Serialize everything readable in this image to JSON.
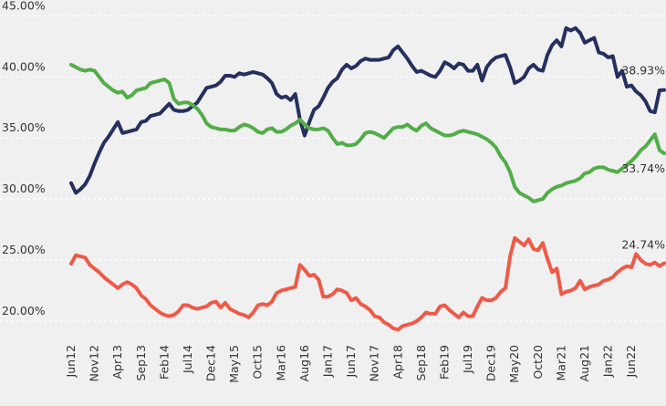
{
  "chart_data": {
    "type": "line",
    "categories": [
      "Jun12",
      null,
      null,
      null,
      null,
      "Nov12",
      null,
      null,
      null,
      null,
      "Apr13",
      null,
      null,
      null,
      null,
      "Sep13",
      null,
      null,
      null,
      null,
      "Feb14",
      null,
      null,
      null,
      null,
      "Jul14",
      null,
      null,
      null,
      null,
      "Dec14",
      null,
      null,
      null,
      null,
      "May15",
      null,
      null,
      null,
      null,
      "Oct15",
      null,
      null,
      null,
      null,
      "Mar16",
      null,
      null,
      null,
      null,
      "Aug16",
      null,
      null,
      null,
      null,
      "Jan17",
      null,
      null,
      null,
      null,
      "Jun17",
      null,
      null,
      null,
      null,
      "Nov17",
      null,
      null,
      null,
      null,
      "Apr18",
      null,
      null,
      null,
      null,
      "Sep18",
      null,
      null,
      null,
      null,
      "Feb19",
      null,
      null,
      null,
      null,
      "Jul19",
      null,
      null,
      null,
      null,
      "Dec19",
      null,
      null,
      null,
      null,
      "May20",
      null,
      null,
      null,
      null,
      "Oct20",
      null,
      null,
      null,
      null,
      "Mar21",
      null,
      null,
      null,
      null,
      "Aug21",
      null,
      null,
      null,
      null,
      "Jan22",
      null,
      null,
      null,
      null,
      "Jun22",
      null,
      null,
      null,
      null,
      null,
      null,
      null
    ],
    "series": [
      {
        "color": "#25305f",
        "values": [
          31.3,
          30.5,
          30.8,
          31.2,
          31.9,
          32.9,
          33.8,
          34.6,
          35.1,
          35.7,
          36.3,
          35.4,
          35.5,
          35.6,
          35.7,
          36.3,
          36.4,
          36.8,
          36.9,
          37.0,
          37.4,
          37.8,
          37.3,
          37.2,
          37.2,
          37.3,
          37.6,
          37.9,
          38.5,
          39.1,
          39.2,
          39.3,
          39.6,
          40.1,
          40.1,
          40.0,
          40.3,
          40.2,
          40.3,
          40.4,
          40.3,
          40.2,
          39.9,
          39.5,
          38.6,
          38.3,
          38.4,
          38.1,
          38.6,
          36.5,
          35.2,
          36.3,
          37.3,
          37.6,
          38.3,
          39.1,
          39.6,
          39.9,
          40.6,
          41.0,
          40.7,
          40.9,
          41.3,
          41.5,
          41.4,
          41.4,
          41.4,
          41.5,
          41.6,
          42.2,
          42.5,
          42.0,
          41.5,
          40.9,
          40.4,
          40.5,
          40.3,
          40.1,
          40.0,
          40.5,
          41.2,
          41.0,
          40.7,
          41.1,
          41.0,
          40.5,
          40.5,
          41.0,
          39.7,
          40.8,
          41.3,
          41.6,
          41.7,
          41.8,
          40.8,
          39.5,
          39.7,
          40.0,
          40.7,
          41.0,
          40.6,
          40.5,
          41.8,
          42.6,
          43.0,
          42.5,
          44.0,
          43.8,
          44.0,
          43.6,
          42.8,
          43.0,
          43.2,
          42.0,
          41.9,
          41.6,
          41.7,
          40.0,
          40.5,
          39.2,
          39.3,
          38.8,
          38.5,
          38.0,
          37.2,
          37.1,
          38.9,
          38.93
        ]
      },
      {
        "color": "#52ad48",
        "values": [
          41.0,
          40.8,
          40.6,
          40.5,
          40.6,
          40.5,
          40.0,
          39.5,
          39.2,
          38.9,
          38.7,
          38.8,
          38.3,
          38.5,
          38.9,
          39.0,
          39.1,
          39.5,
          39.6,
          39.7,
          39.8,
          39.5,
          38.2,
          37.8,
          37.9,
          37.9,
          37.7,
          37.4,
          36.9,
          36.2,
          35.9,
          35.8,
          35.7,
          35.7,
          35.6,
          35.6,
          35.9,
          36.1,
          36.0,
          35.8,
          35.5,
          35.4,
          35.7,
          35.8,
          35.5,
          35.5,
          35.7,
          36.0,
          36.2,
          36.5,
          36.1,
          35.8,
          35.7,
          35.7,
          35.8,
          35.6,
          35.0,
          34.5,
          34.6,
          34.4,
          34.4,
          34.5,
          34.9,
          35.4,
          35.5,
          35.4,
          35.2,
          35.0,
          35.4,
          35.8,
          35.9,
          35.9,
          36.1,
          35.8,
          35.6,
          36.0,
          36.2,
          35.8,
          35.6,
          35.4,
          35.2,
          35.2,
          35.3,
          35.5,
          35.6,
          35.5,
          35.4,
          35.3,
          35.1,
          34.9,
          34.6,
          34.2,
          33.5,
          33.0,
          32.2,
          31.0,
          30.5,
          30.3,
          30.1,
          29.8,
          29.9,
          30.0,
          30.5,
          30.8,
          31.0,
          31.1,
          31.3,
          31.4,
          31.5,
          31.7,
          32.1,
          32.2,
          32.5,
          32.6,
          32.6,
          32.4,
          32.3,
          32.2,
          32.5,
          32.8,
          33.1,
          33.5,
          34.0,
          34.3,
          34.8,
          35.3,
          34.0,
          33.74
        ]
      },
      {
        "color": "#ee5a48",
        "values": [
          24.7,
          25.4,
          25.3,
          25.2,
          24.6,
          24.3,
          24.0,
          23.6,
          23.3,
          23.0,
          22.7,
          23.0,
          23.2,
          23.0,
          22.7,
          22.1,
          21.8,
          21.3,
          21.0,
          20.7,
          20.5,
          20.4,
          20.5,
          20.8,
          21.3,
          21.3,
          21.1,
          21.0,
          21.1,
          21.2,
          21.5,
          21.6,
          21.1,
          21.5,
          21.0,
          20.8,
          20.6,
          20.5,
          20.3,
          20.7,
          21.3,
          21.4,
          21.3,
          21.6,
          22.3,
          22.5,
          22.6,
          22.7,
          22.8,
          24.6,
          24.2,
          23.7,
          23.8,
          23.4,
          22.0,
          22.0,
          22.2,
          22.6,
          22.5,
          22.3,
          21.7,
          21.9,
          21.4,
          21.2,
          20.9,
          20.4,
          20.3,
          19.9,
          19.7,
          19.4,
          19.3,
          19.6,
          19.7,
          19.8,
          20.0,
          20.3,
          20.7,
          20.6,
          20.6,
          21.2,
          21.3,
          20.9,
          20.6,
          20.3,
          20.7,
          20.4,
          20.4,
          21.2,
          21.9,
          21.7,
          21.7,
          21.9,
          22.4,
          22.7,
          25.3,
          26.8,
          26.5,
          26.2,
          26.7,
          25.9,
          25.8,
          26.4,
          25.1,
          24.0,
          24.3,
          22.2,
          22.4,
          22.5,
          22.7,
          23.3,
          22.6,
          22.8,
          22.9,
          23.0,
          23.3,
          23.4,
          23.6,
          24.0,
          24.3,
          24.5,
          24.4,
          25.5,
          25.0,
          24.7,
          24.6,
          24.8,
          24.5,
          24.74
        ]
      }
    ],
    "annotations": [
      "38.93%",
      "33.74%",
      "24.74%"
    ],
    "ylim": [
      18.5,
      46.3
    ],
    "yticks": [
      {
        "value": 20,
        "label": "20.00%"
      },
      {
        "value": 25,
        "label": "25.00%"
      },
      {
        "value": 30,
        "label": "30.00%"
      },
      {
        "value": 35,
        "label": "35.00%"
      },
      {
        "value": 40,
        "label": "40.00%"
      },
      {
        "value": 45,
        "label": "45.00%"
      }
    ],
    "grid": true
  }
}
